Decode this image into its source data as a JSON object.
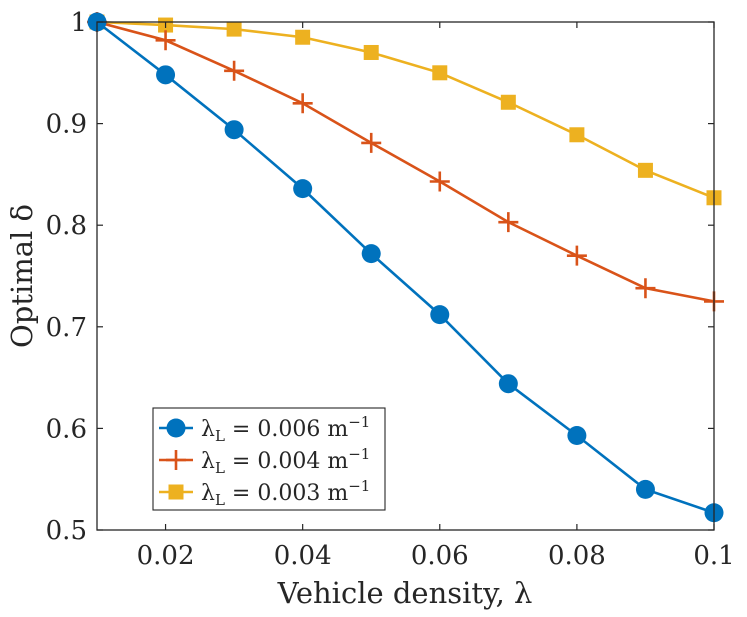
{
  "chart_data": {
    "type": "line",
    "title": "",
    "xlabel": "Vehicle density, λ",
    "ylabel": "Optimal δ",
    "xlim": [
      0.01,
      0.1
    ],
    "ylim": [
      0.5,
      1.0
    ],
    "x_ticks": [
      0.02,
      0.04,
      0.06,
      0.08,
      0.1
    ],
    "x_tick_labels": [
      "0.02",
      "0.04",
      "0.06",
      "0.08",
      "0.1"
    ],
    "y_ticks": [
      0.5,
      0.6,
      0.7,
      0.8,
      0.9,
      1.0
    ],
    "y_tick_labels": [
      "0.5",
      "0.6",
      "0.7",
      "0.8",
      "0.9",
      "1"
    ],
    "grid": false,
    "legend_position": "bottom-left",
    "x": [
      0.01,
      0.02,
      0.03,
      0.04,
      0.05,
      0.06,
      0.07,
      0.08,
      0.09,
      0.1
    ],
    "series": [
      {
        "name": "λ_L = 0.006 m⁻¹",
        "legend_label": "λL = 0.006 m−1",
        "color": "#0072BD",
        "marker": "circle",
        "values": [
          1.0,
          0.948,
          0.894,
          0.836,
          0.772,
          0.712,
          0.644,
          0.593,
          0.54,
          0.517
        ]
      },
      {
        "name": "λ_L = 0.004 m⁻¹",
        "legend_label": "λL = 0.004 m−1",
        "color": "#D95319",
        "marker": "plus",
        "values": [
          1.0,
          0.982,
          0.952,
          0.92,
          0.881,
          0.843,
          0.803,
          0.77,
          0.738,
          0.725
        ]
      },
      {
        "name": "λ_L = 0.003 m⁻¹",
        "legend_label": "λL = 0.003 m−1",
        "color": "#EDB120",
        "marker": "square",
        "values": [
          1.0,
          0.997,
          0.993,
          0.985,
          0.97,
          0.95,
          0.921,
          0.889,
          0.854,
          0.827
        ]
      }
    ]
  }
}
